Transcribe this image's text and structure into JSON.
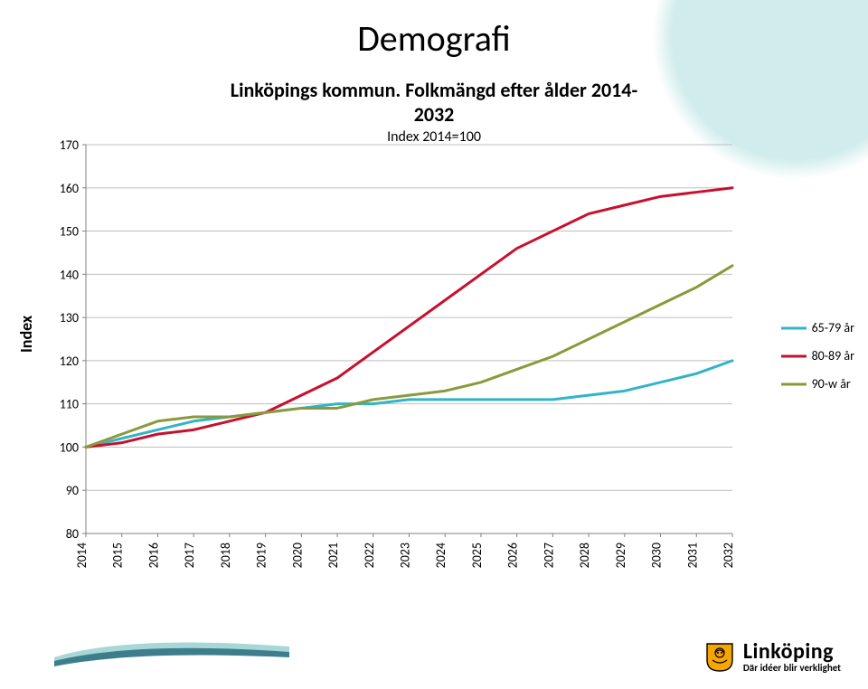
{
  "page_title": "Demografi",
  "chart": {
    "type": "line",
    "title_main": "Linköpings kommun. Folkmängd efter ålder 2014-2032",
    "title_sub": "Index 2014=100",
    "xlabel": "",
    "ylabel": "Index",
    "ylim": [
      80,
      170
    ],
    "ytick_step": 10,
    "xvalues": [
      2014,
      2015,
      2016,
      2017,
      2018,
      2019,
      2020,
      2021,
      2022,
      2023,
      2024,
      2025,
      2026,
      2027,
      2028,
      2029,
      2030,
      2031,
      2032
    ],
    "series": [
      {
        "name": "65-79 år",
        "color": "#32b4c8",
        "line_width": 3,
        "values": [
          100,
          102,
          104,
          106,
          107,
          108,
          109,
          110,
          110,
          111,
          111,
          111,
          111,
          111,
          112,
          113,
          115,
          117,
          120
        ]
      },
      {
        "name": "80-89 år",
        "color": "#c8102e",
        "line_width": 3,
        "values": [
          100,
          101,
          103,
          104,
          106,
          108,
          112,
          116,
          122,
          128,
          134,
          140,
          146,
          150,
          154,
          156,
          158,
          159,
          160
        ]
      },
      {
        "name": "90-w år",
        "color": "#8a9a3b",
        "line_width": 3,
        "values": [
          100,
          103,
          106,
          107,
          107,
          108,
          109,
          109,
          111,
          112,
          113,
          115,
          118,
          121,
          125,
          129,
          133,
          137,
          142
        ]
      }
    ],
    "grid_color": "#bfbfbf",
    "axis_color": "#808080",
    "background_color": "#ffffff",
    "tick_fontsize": 14,
    "title_fontsize_main": 22,
    "title_fontsize_sub": 16,
    "ylabel_fontsize": 18,
    "legend_fontsize": 14,
    "xlabel_rotation": 90
  },
  "decorations": {
    "arc_color": "#a7d7d7",
    "swoosh_dark": "#3e7e8c",
    "swoosh_light": "#a7d7d7"
  },
  "logo": {
    "wordmark": "Linköping",
    "tagline": "Där idéer blir verklighet",
    "crest_body": "#f7a600",
    "crest_outline": "#000000"
  }
}
